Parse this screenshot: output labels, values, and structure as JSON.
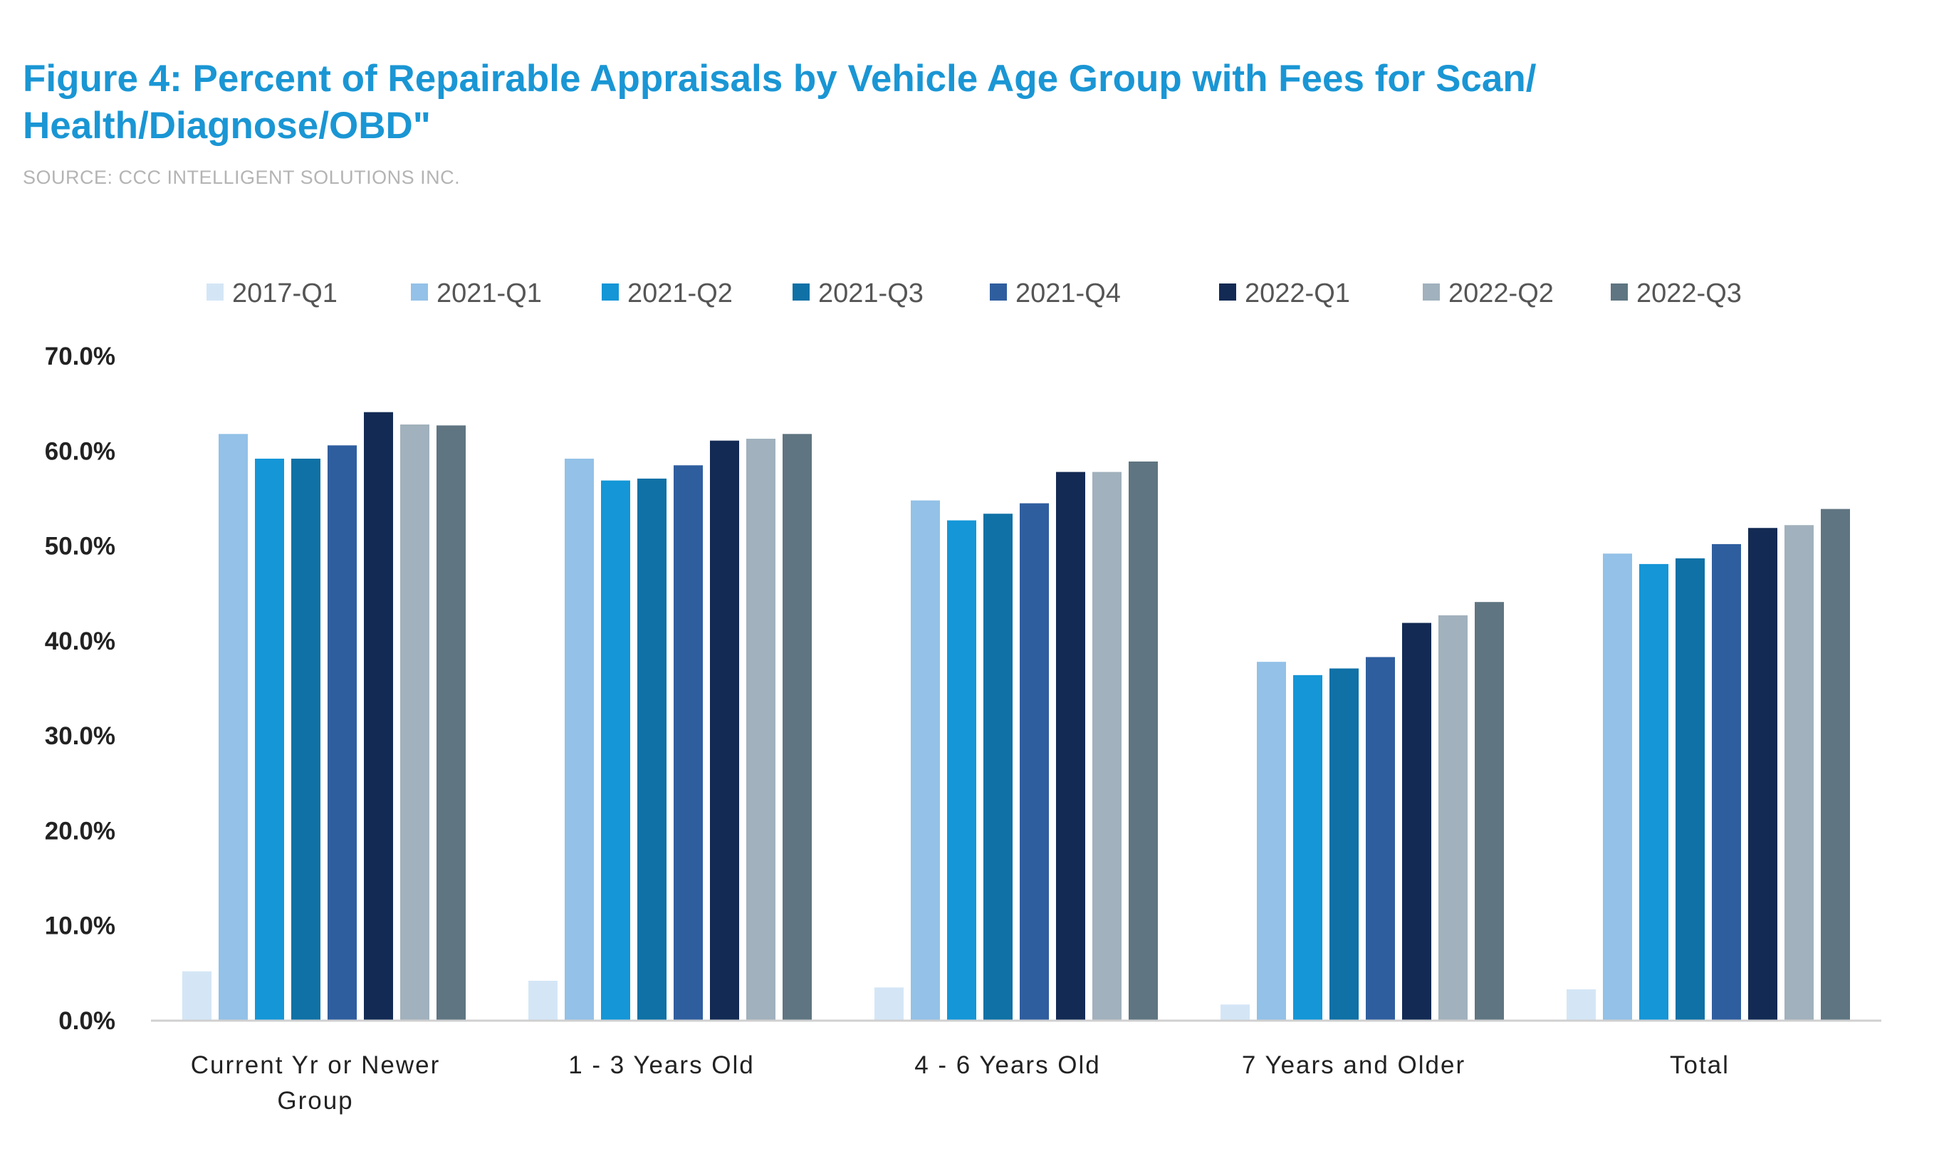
{
  "header": {
    "title": "Figure 4: Percent of Repairable Appraisals by Vehicle Age Group with Fees for Scan/ Health/Diagnose/OBD\"",
    "source": "SOURCE: CCC INTELLIGENT SOLUTIONS INC."
  },
  "chart_data": {
    "type": "bar",
    "title": "Figure 4: Percent of Repairable Appraisals by Vehicle Age Group with Fees for Scan/ Health/Diagnose/OBD\"",
    "xlabel": "",
    "ylabel": "",
    "ylim": [
      0,
      70
    ],
    "yticks": [
      "0.0%",
      "10.0%",
      "20.0%",
      "30.0%",
      "40.0%",
      "50.0%",
      "60.0%",
      "70.0%"
    ],
    "grid": false,
    "legend_position": "top",
    "categories": [
      [
        "Current Yr or Newer",
        "Group"
      ],
      [
        "1 - 3 Years Old"
      ],
      [
        "4 - 6 Years Old"
      ],
      [
        "7 Years and Older"
      ],
      [
        "Total"
      ]
    ],
    "series": [
      {
        "name": "2017-Q1",
        "color": "#d4e6f6",
        "values": [
          5.2,
          4.2,
          3.5,
          1.7,
          3.3
        ]
      },
      {
        "name": "2021-Q1",
        "color": "#93c1e7",
        "values": [
          61.8,
          59.2,
          54.8,
          37.8,
          49.2
        ]
      },
      {
        "name": "2021-Q2",
        "color": "#1496d7",
        "values": [
          59.2,
          56.9,
          52.7,
          36.4,
          48.1
        ]
      },
      {
        "name": "2021-Q3",
        "color": "#0f71a6",
        "values": [
          59.2,
          57.1,
          53.4,
          37.1,
          48.7
        ]
      },
      {
        "name": "2021-Q4",
        "color": "#2f5e9f",
        "values": [
          60.6,
          58.5,
          54.5,
          38.3,
          50.2
        ]
      },
      {
        "name": "2022-Q1",
        "color": "#132a54",
        "values": [
          64.1,
          61.1,
          57.8,
          41.9,
          51.9
        ]
      },
      {
        "name": "2022-Q2",
        "color": "#a1b1bd",
        "values": [
          62.8,
          61.3,
          57.8,
          42.7,
          52.2
        ]
      },
      {
        "name": "2022-Q3",
        "color": "#5f7581",
        "values": [
          62.7,
          61.8,
          58.9,
          44.1,
          53.9
        ]
      }
    ]
  }
}
